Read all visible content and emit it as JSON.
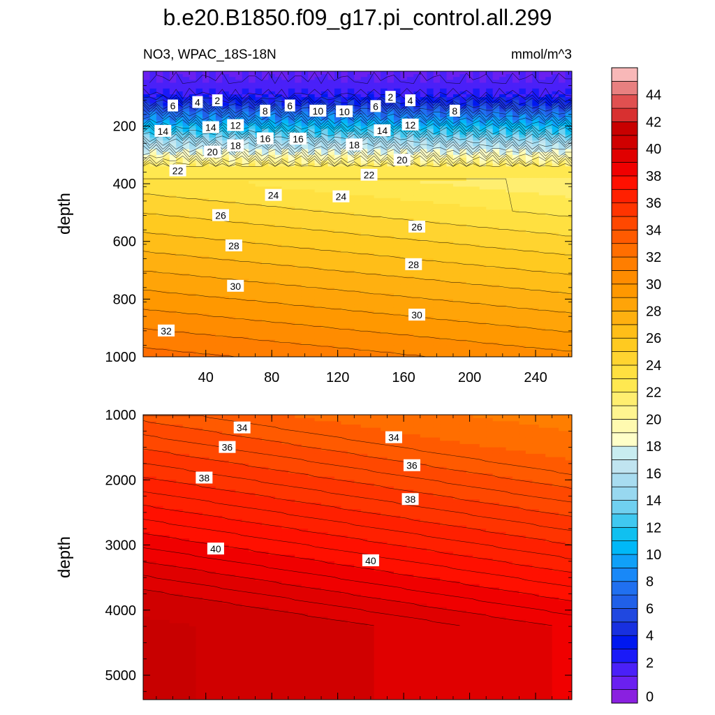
{
  "title": "b.e20.B1850.f09_g17.pi_control.all.299",
  "chart_data": {
    "type": "contour",
    "variable": "NO3, WPAC_18S-18N",
    "units": "mmol/m^3",
    "x_ticks": [
      40,
      80,
      120,
      160,
      200,
      240
    ],
    "xlim": [
      2,
      262
    ],
    "colorbar": {
      "levels": [
        0,
        2,
        4,
        6,
        8,
        10,
        12,
        14,
        16,
        18,
        20,
        22,
        24,
        26,
        28,
        30,
        32,
        34,
        36,
        38,
        40,
        42,
        44
      ],
      "colors": [
        "#8a20e0",
        "#6a20f0",
        "#4a20f8",
        "#1a1af8",
        "#0018f0",
        "#1830e0",
        "#2048e0",
        "#2060e8",
        "#2070f0",
        "#1888f8",
        "#10a0f8",
        "#00b8f8",
        "#10c0f0",
        "#40c8f0",
        "#70d0f0",
        "#98d8f0",
        "#a8dcf0",
        "#c0e4f0",
        "#c8ecf0",
        "#ffffc8",
        "#fffab0",
        "#fff490",
        "#ffee70",
        "#ffe850",
        "#ffe040",
        "#ffd430",
        "#ffca20",
        "#ffbe18",
        "#ffb010",
        "#ffa408",
        "#ff9800",
        "#ff8c00",
        "#ff7e00",
        "#ff6e00",
        "#ff5a00",
        "#ff4800",
        "#ff3400",
        "#ff2000",
        "#ff1000",
        "#f00000",
        "#e00000",
        "#d00000",
        "#c80000",
        "#d83030",
        "#e05050",
        "#e88080",
        "#f8b8b8"
      ]
    },
    "upper_panel": {
      "ylabel": "depth",
      "y_ticks": [
        200,
        400,
        600,
        800,
        1000
      ],
      "ylim": [
        10,
        1000
      ],
      "contour_labels": [
        {
          "x": 20,
          "y": 130,
          "v": "6"
        },
        {
          "x": 35,
          "y": 118,
          "v": "4"
        },
        {
          "x": 47,
          "y": 112,
          "v": "2"
        },
        {
          "x": 14,
          "y": 218,
          "v": "14"
        },
        {
          "x": 43,
          "y": 205,
          "v": "14"
        },
        {
          "x": 58,
          "y": 198,
          "v": "12"
        },
        {
          "x": 76,
          "y": 148,
          "v": "8"
        },
        {
          "x": 91,
          "y": 130,
          "v": "6"
        },
        {
          "x": 108,
          "y": 148,
          "v": "10"
        },
        {
          "x": 124,
          "y": 150,
          "v": "10"
        },
        {
          "x": 143,
          "y": 132,
          "v": "6"
        },
        {
          "x": 152,
          "y": 100,
          "v": "2"
        },
        {
          "x": 164,
          "y": 112,
          "v": "4"
        },
        {
          "x": 191,
          "y": 148,
          "v": "8"
        },
        {
          "x": 164,
          "y": 196,
          "v": "12"
        },
        {
          "x": 147,
          "y": 216,
          "v": "14"
        },
        {
          "x": 58,
          "y": 268,
          "v": "18"
        },
        {
          "x": 76,
          "y": 244,
          "v": "16"
        },
        {
          "x": 96,
          "y": 245,
          "v": "16"
        },
        {
          "x": 130,
          "y": 265,
          "v": "18"
        },
        {
          "x": 44,
          "y": 290,
          "v": "20"
        },
        {
          "x": 159,
          "y": 318,
          "v": "20"
        },
        {
          "x": 23,
          "y": 355,
          "v": "22"
        },
        {
          "x": 139,
          "y": 370,
          "v": "22"
        },
        {
          "x": 81,
          "y": 440,
          "v": "24"
        },
        {
          "x": 122,
          "y": 445,
          "v": "24"
        },
        {
          "x": 49,
          "y": 510,
          "v": "26"
        },
        {
          "x": 168,
          "y": 550,
          "v": "26"
        },
        {
          "x": 57,
          "y": 615,
          "v": "28"
        },
        {
          "x": 166,
          "y": 680,
          "v": "28"
        },
        {
          "x": 58,
          "y": 755,
          "v": "30"
        },
        {
          "x": 168,
          "y": 855,
          "v": "30"
        },
        {
          "x": 16,
          "y": 910,
          "v": "32"
        }
      ]
    },
    "lower_panel": {
      "ylabel": "depth",
      "y_ticks": [
        1000,
        2000,
        3000,
        4000,
        5000
      ],
      "ylim": [
        1000,
        5375
      ],
      "contour_labels": [
        {
          "x": 62,
          "y": 1200,
          "v": "34"
        },
        {
          "x": 154,
          "y": 1350,
          "v": "34"
        },
        {
          "x": 53,
          "y": 1500,
          "v": "36"
        },
        {
          "x": 165,
          "y": 1780,
          "v": "36"
        },
        {
          "x": 39,
          "y": 1970,
          "v": "38"
        },
        {
          "x": 164,
          "y": 2300,
          "v": "38"
        },
        {
          "x": 46,
          "y": 3060,
          "v": "40"
        },
        {
          "x": 140,
          "y": 3240,
          "v": "40"
        }
      ]
    }
  }
}
